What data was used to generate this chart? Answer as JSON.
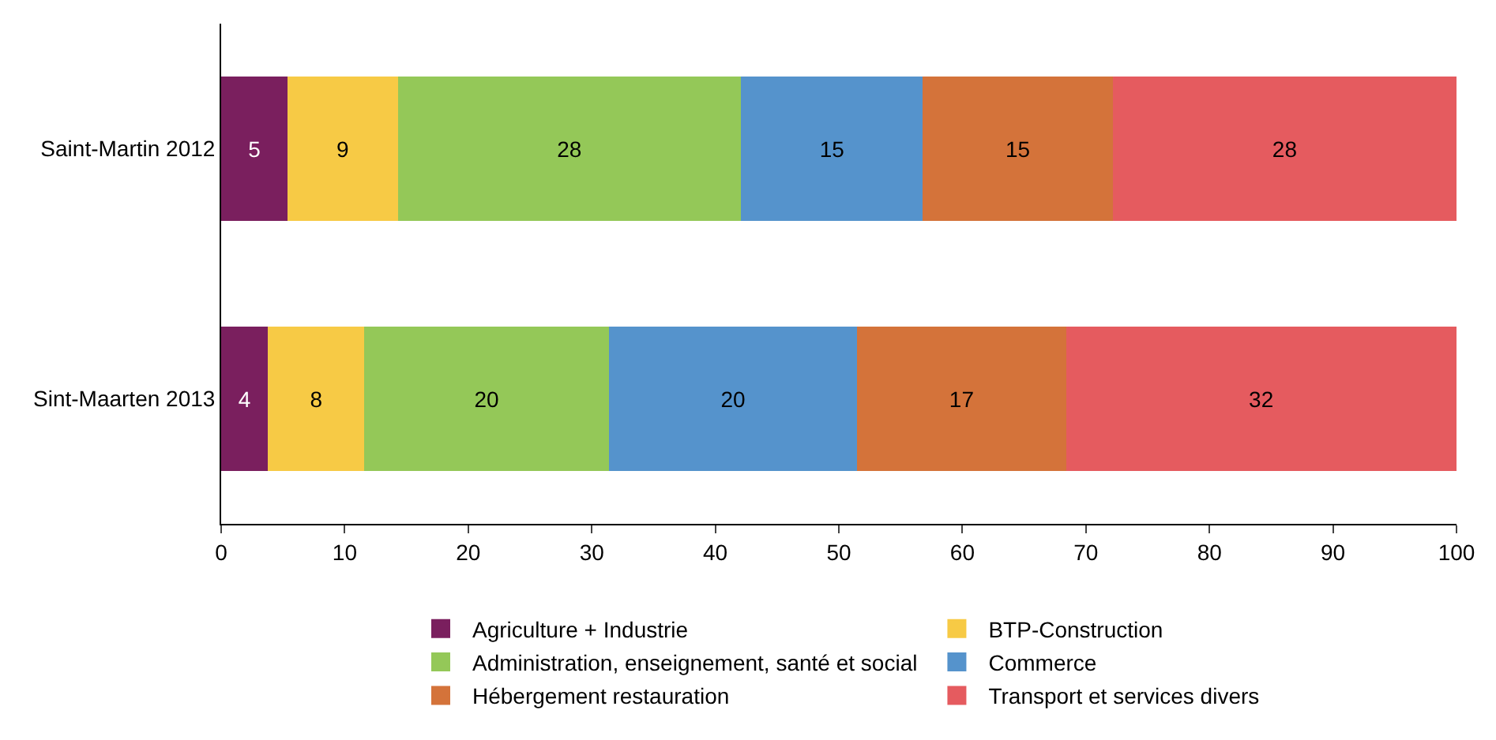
{
  "chart_data": {
    "type": "bar",
    "orientation": "horizontal",
    "stacked": true,
    "categories": [
      "Saint-Martin 2012",
      "Sint-Maarten 2013"
    ],
    "series": [
      {
        "name": "Agriculture + Industrie",
        "color": "#7a1f5e",
        "values": [
          5.4,
          3.8
        ],
        "value_labels": [
          "5",
          "4"
        ]
      },
      {
        "name": "BTP-Construction",
        "color": "#f7ca45",
        "values": [
          8.9,
          7.8
        ],
        "value_labels": [
          "9",
          "8"
        ]
      },
      {
        "name": "Administration, enseignement, santé et social",
        "color": "#94c858",
        "values": [
          27.8,
          19.8
        ],
        "value_labels": [
          "28",
          "20"
        ]
      },
      {
        "name": "Commerce",
        "color": "#5593cc",
        "values": [
          14.7,
          20.1
        ],
        "value_labels": [
          "15",
          "20"
        ]
      },
      {
        "name": "Hébergement restauration",
        "color": "#d4733a",
        "values": [
          15.4,
          16.9
        ],
        "value_labels": [
          "15",
          "17"
        ]
      },
      {
        "name": "Transport et services divers",
        "color": "#e55b5f",
        "values": [
          27.8,
          31.6
        ],
        "value_labels": [
          "28",
          "32"
        ]
      }
    ],
    "xlim": [
      0,
      100
    ],
    "xticks": [
      0,
      10,
      20,
      30,
      40,
      50,
      60,
      70,
      80,
      90,
      100
    ],
    "legend": "bottom"
  }
}
